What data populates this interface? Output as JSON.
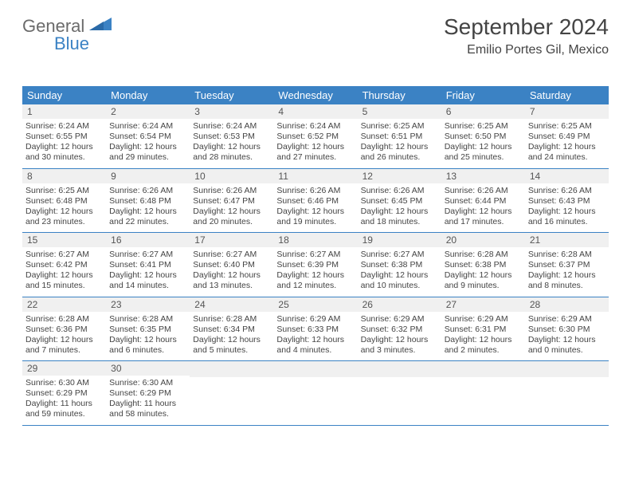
{
  "logo": {
    "text1": "General",
    "text2": "Blue"
  },
  "title": "September 2024",
  "location": "Emilio Portes Gil, Mexico",
  "colors": {
    "accent": "#3b82c4",
    "header_bg": "#3b82c4",
    "header_text": "#ffffff",
    "daynum_bg": "#f0f0f0",
    "text": "#444444"
  },
  "day_names": [
    "Sunday",
    "Monday",
    "Tuesday",
    "Wednesday",
    "Thursday",
    "Friday",
    "Saturday"
  ],
  "start_weekday": 0,
  "days_in_month": 30,
  "days": [
    {
      "n": "1",
      "sunrise": "6:24 AM",
      "sunset": "6:55 PM",
      "day_h": 12,
      "day_m": 30
    },
    {
      "n": "2",
      "sunrise": "6:24 AM",
      "sunset": "6:54 PM",
      "day_h": 12,
      "day_m": 29
    },
    {
      "n": "3",
      "sunrise": "6:24 AM",
      "sunset": "6:53 PM",
      "day_h": 12,
      "day_m": 28
    },
    {
      "n": "4",
      "sunrise": "6:24 AM",
      "sunset": "6:52 PM",
      "day_h": 12,
      "day_m": 27
    },
    {
      "n": "5",
      "sunrise": "6:25 AM",
      "sunset": "6:51 PM",
      "day_h": 12,
      "day_m": 26
    },
    {
      "n": "6",
      "sunrise": "6:25 AM",
      "sunset": "6:50 PM",
      "day_h": 12,
      "day_m": 25
    },
    {
      "n": "7",
      "sunrise": "6:25 AM",
      "sunset": "6:49 PM",
      "day_h": 12,
      "day_m": 24
    },
    {
      "n": "8",
      "sunrise": "6:25 AM",
      "sunset": "6:48 PM",
      "day_h": 12,
      "day_m": 23
    },
    {
      "n": "9",
      "sunrise": "6:26 AM",
      "sunset": "6:48 PM",
      "day_h": 12,
      "day_m": 22
    },
    {
      "n": "10",
      "sunrise": "6:26 AM",
      "sunset": "6:47 PM",
      "day_h": 12,
      "day_m": 20
    },
    {
      "n": "11",
      "sunrise": "6:26 AM",
      "sunset": "6:46 PM",
      "day_h": 12,
      "day_m": 19
    },
    {
      "n": "12",
      "sunrise": "6:26 AM",
      "sunset": "6:45 PM",
      "day_h": 12,
      "day_m": 18
    },
    {
      "n": "13",
      "sunrise": "6:26 AM",
      "sunset": "6:44 PM",
      "day_h": 12,
      "day_m": 17
    },
    {
      "n": "14",
      "sunrise": "6:26 AM",
      "sunset": "6:43 PM",
      "day_h": 12,
      "day_m": 16
    },
    {
      "n": "15",
      "sunrise": "6:27 AM",
      "sunset": "6:42 PM",
      "day_h": 12,
      "day_m": 15
    },
    {
      "n": "16",
      "sunrise": "6:27 AM",
      "sunset": "6:41 PM",
      "day_h": 12,
      "day_m": 14
    },
    {
      "n": "17",
      "sunrise": "6:27 AM",
      "sunset": "6:40 PM",
      "day_h": 12,
      "day_m": 13
    },
    {
      "n": "18",
      "sunrise": "6:27 AM",
      "sunset": "6:39 PM",
      "day_h": 12,
      "day_m": 12
    },
    {
      "n": "19",
      "sunrise": "6:27 AM",
      "sunset": "6:38 PM",
      "day_h": 12,
      "day_m": 10
    },
    {
      "n": "20",
      "sunrise": "6:28 AM",
      "sunset": "6:38 PM",
      "day_h": 12,
      "day_m": 9
    },
    {
      "n": "21",
      "sunrise": "6:28 AM",
      "sunset": "6:37 PM",
      "day_h": 12,
      "day_m": 8
    },
    {
      "n": "22",
      "sunrise": "6:28 AM",
      "sunset": "6:36 PM",
      "day_h": 12,
      "day_m": 7
    },
    {
      "n": "23",
      "sunrise": "6:28 AM",
      "sunset": "6:35 PM",
      "day_h": 12,
      "day_m": 6
    },
    {
      "n": "24",
      "sunrise": "6:28 AM",
      "sunset": "6:34 PM",
      "day_h": 12,
      "day_m": 5
    },
    {
      "n": "25",
      "sunrise": "6:29 AM",
      "sunset": "6:33 PM",
      "day_h": 12,
      "day_m": 4
    },
    {
      "n": "26",
      "sunrise": "6:29 AM",
      "sunset": "6:32 PM",
      "day_h": 12,
      "day_m": 3
    },
    {
      "n": "27",
      "sunrise": "6:29 AM",
      "sunset": "6:31 PM",
      "day_h": 12,
      "day_m": 2
    },
    {
      "n": "28",
      "sunrise": "6:29 AM",
      "sunset": "6:30 PM",
      "day_h": 12,
      "day_m": 0
    },
    {
      "n": "29",
      "sunrise": "6:30 AM",
      "sunset": "6:29 PM",
      "day_h": 11,
      "day_m": 59
    },
    {
      "n": "30",
      "sunrise": "6:30 AM",
      "sunset": "6:29 PM",
      "day_h": 11,
      "day_m": 58
    }
  ],
  "labels": {
    "sunrise": "Sunrise:",
    "sunset": "Sunset:",
    "daylight_prefix": "Daylight:",
    "hours_word": "hours",
    "and_word": "and",
    "minutes_word": "minutes."
  }
}
